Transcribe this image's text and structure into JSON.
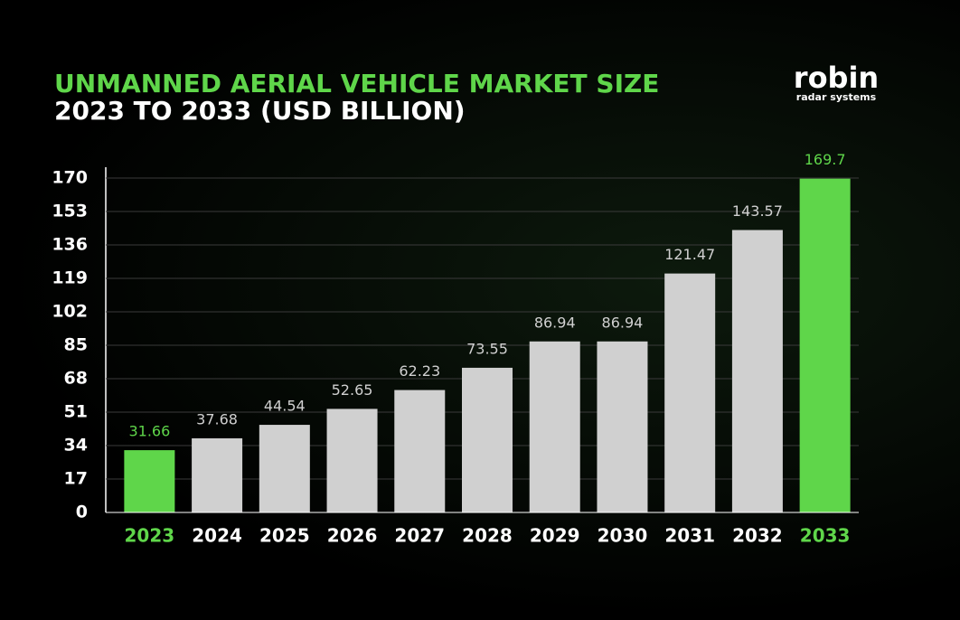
{
  "chart_data": {
    "type": "bar",
    "title": "UNMANNED AERIAL VEHICLE MARKET SIZE",
    "subtitle": "2023 TO 2033 (USD BILLION)",
    "categories": [
      "2023",
      "2024",
      "2025",
      "2026",
      "2027",
      "2028",
      "2029",
      "2030",
      "2031",
      "2032",
      "2033"
    ],
    "values": [
      31.66,
      37.68,
      44.54,
      52.65,
      62.23,
      73.55,
      86.94,
      86.94,
      121.47,
      143.57,
      169.7
    ],
    "color": "#d0d0d0",
    "highlight_color": "#5fd64a",
    "highlight": [
      true,
      false,
      false,
      false,
      false,
      false,
      false,
      false,
      false,
      false,
      true
    ],
    "ylim": [
      0,
      170
    ],
    "yticks": [
      0,
      17,
      34,
      51,
      68,
      85,
      102,
      119,
      136,
      153,
      170
    ],
    "grid": true
  },
  "logo": {
    "name": "robin",
    "tagline": "radar systems"
  }
}
